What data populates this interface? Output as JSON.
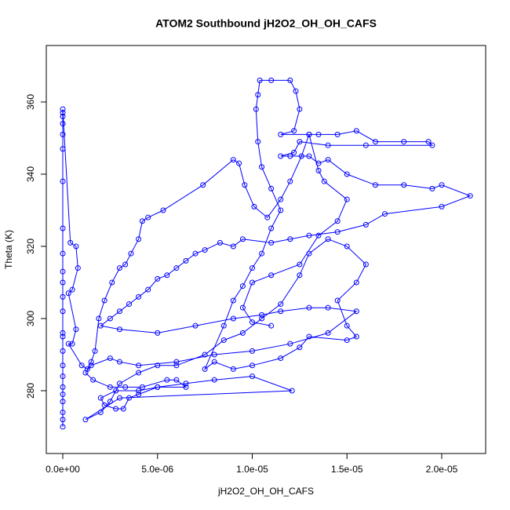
{
  "chart_data": {
    "type": "line",
    "title": "ATOM2 Southbound jH2O2_OH_OH_CAFS",
    "xlabel": "jH2O2_OH_OH_CAFS",
    "ylabel": "Theta (K)",
    "color": "#0000ff",
    "markers": true,
    "xlim": [
      -8.7e-07,
      2.232e-05
    ],
    "ylim": [
      262.6,
      375.65
    ],
    "xticks": [
      {
        "value": 0,
        "label": "0.0e+00"
      },
      {
        "value": 5e-06,
        "label": "5.0e-06"
      },
      {
        "value": 1e-05,
        "label": "1.0e-05"
      },
      {
        "value": 1.5e-05,
        "label": "1.5e-05"
      },
      {
        "value": 2e-05,
        "label": "2.0e-05"
      }
    ],
    "yticks": [
      280,
      300,
      320,
      340,
      360
    ],
    "x": [
      0,
      0,
      0,
      0,
      0,
      0,
      0,
      0,
      0,
      0,
      0,
      0,
      0,
      0,
      0,
      0,
      0,
      0,
      0,
      0,
      0,
      0,
      0,
      0,
      4e-07,
      7e-07,
      8e-07,
      5e-07,
      3e-07,
      7e-07,
      5e-07,
      3e-07,
      1e-06,
      1.3e-06,
      1.5e-06,
      1.7e-06,
      1.9e-06,
      2.2e-06,
      2.6e-06,
      3e-06,
      3.3e-06,
      3.6e-06,
      4e-06,
      4.2e-06,
      4.5e-06,
      5.3e-06,
      7.4e-06,
      9e-06,
      9.3e-06,
      9.6e-06,
      1.01e-05,
      1.08e-05,
      1.15e-05,
      1.2e-05,
      1.26e-05,
      1.3e-05,
      1.35e-05,
      1.45e-05,
      1.55e-05,
      1.65e-05,
      1.8e-05,
      1.93e-05,
      1.95e-05,
      1.6e-05,
      1.4e-05,
      1.25e-05,
      1.22e-05,
      1.15e-05,
      1.2e-05,
      1.3e-05,
      1.35e-05,
      1.4e-05,
      1.5e-05,
      1.65e-05,
      1.8e-05,
      1.95e-05,
      2e-05,
      2.15e-05,
      2e-05,
      1.7e-05,
      1.6e-05,
      1.45e-05,
      1.3e-05,
      1.2e-05,
      1.1e-05,
      9.5e-06,
      9e-06,
      8.3e-06,
      7.5e-06,
      7e-06,
      6.5e-06,
      6e-06,
      5.5e-06,
      5e-06,
      4.5e-06,
      4e-06,
      3.5e-06,
      3e-06,
      2.5e-06,
      2e-06,
      3e-06,
      5e-06,
      7e-06,
      9e-06,
      1.05e-05,
      1.15e-05,
      1.3e-05,
      1.4e-05,
      1.55e-05,
      1.4e-05,
      1.2e-05,
      1e-05,
      8e-06,
      6e-06,
      4e-06,
      3e-06,
      2.5e-06,
      1.5e-06,
      1.2e-06,
      1.6e-06,
      2.5e-06,
      3.3e-06,
      4.2e-06,
      5.5e-06,
      6e-06,
      6.5e-06,
      5e-06,
      4e-06,
      2.8e-06,
      2e-06,
      2.2e-06,
      2.8e-06,
      3.2e-06,
      3.5e-06,
      4e-06,
      5e-06,
      6.5e-06,
      8e-06,
      1e-05,
      1.21e-05,
      3e-06,
      1.2e-06,
      2e-06,
      2.5e-06,
      3e-06,
      4e-06,
      5e-06,
      6e-06,
      7.5e-06,
      8.5e-06,
      9.5e-06,
      1.05e-05,
      1.15e-05,
      1.25e-05,
      1.3e-05,
      1.4e-05,
      1.5e-05,
      1.6e-05,
      1.55e-05,
      1.45e-05,
      1.5e-05,
      1.55e-05,
      1.5e-05,
      1.3e-05,
      1.25e-05,
      1.15e-05,
      1e-05,
      9e-06,
      8e-06,
      7.5e-06,
      8.5e-06,
      9e-06,
      9.5e-06,
      1e-05,
      1.05e-05,
      1.1e-05,
      1.15e-05,
      1.1e-05,
      1.05e-05,
      1.03e-05,
      1.02e-05,
      1.03e-05,
      1.04e-05,
      1.1e-05,
      1.2e-05,
      1.23e-05,
      1.25e-05,
      1.22e-05,
      1.15e-05,
      1.3e-05,
      1.35e-05,
      1.38e-05,
      1.5e-05,
      1.45e-05,
      1.35e-05,
      1.25e-05,
      1.1e-05,
      1e-05,
      9.5e-06,
      1e-05,
      1.1e-05
    ],
    "values": [
      270,
      272,
      274,
      277,
      279,
      281,
      284,
      287,
      291,
      295,
      296,
      302,
      306,
      310,
      313,
      318,
      325,
      338,
      347,
      351,
      354,
      356,
      357,
      358,
      321,
      320,
      314,
      308,
      307,
      297,
      293,
      293,
      287,
      286,
      288,
      291,
      300,
      305,
      310,
      314,
      315,
      318,
      322,
      327,
      328,
      330,
      337,
      344,
      343,
      337,
      331,
      328,
      333,
      338,
      345,
      351,
      351,
      351,
      352,
      349,
      349,
      349,
      348,
      348,
      348,
      349,
      346,
      345,
      345,
      345,
      343,
      344,
      340,
      337,
      337,
      336,
      337,
      334,
      331,
      329,
      326,
      324,
      323,
      322,
      321,
      322,
      320,
      321,
      319,
      318,
      316,
      314,
      312,
      311,
      308,
      306,
      304,
      302,
      300,
      298,
      297,
      296,
      298,
      300,
      301,
      302,
      303,
      303,
      302,
      296,
      293,
      291,
      290,
      288,
      287,
      288,
      289,
      287,
      285,
      283,
      281,
      281,
      281,
      283,
      283,
      281,
      281,
      280,
      280,
      278,
      276,
      275,
      275,
      278,
      279,
      281,
      282,
      283,
      284,
      280,
      278,
      272,
      274,
      277,
      282,
      285,
      287,
      287,
      290,
      294,
      296,
      300,
      304,
      312,
      318,
      322,
      320,
      315,
      310,
      305,
      298,
      295,
      294,
      295,
      292,
      289,
      287,
      286,
      288,
      286,
      298,
      305,
      309,
      314,
      318,
      325,
      330,
      336,
      342,
      349,
      358,
      362,
      366,
      366,
      366,
      363,
      358,
      352,
      351,
      351,
      341,
      338,
      333,
      327,
      323,
      315,
      312,
      310,
      303,
      299,
      298
    ]
  }
}
